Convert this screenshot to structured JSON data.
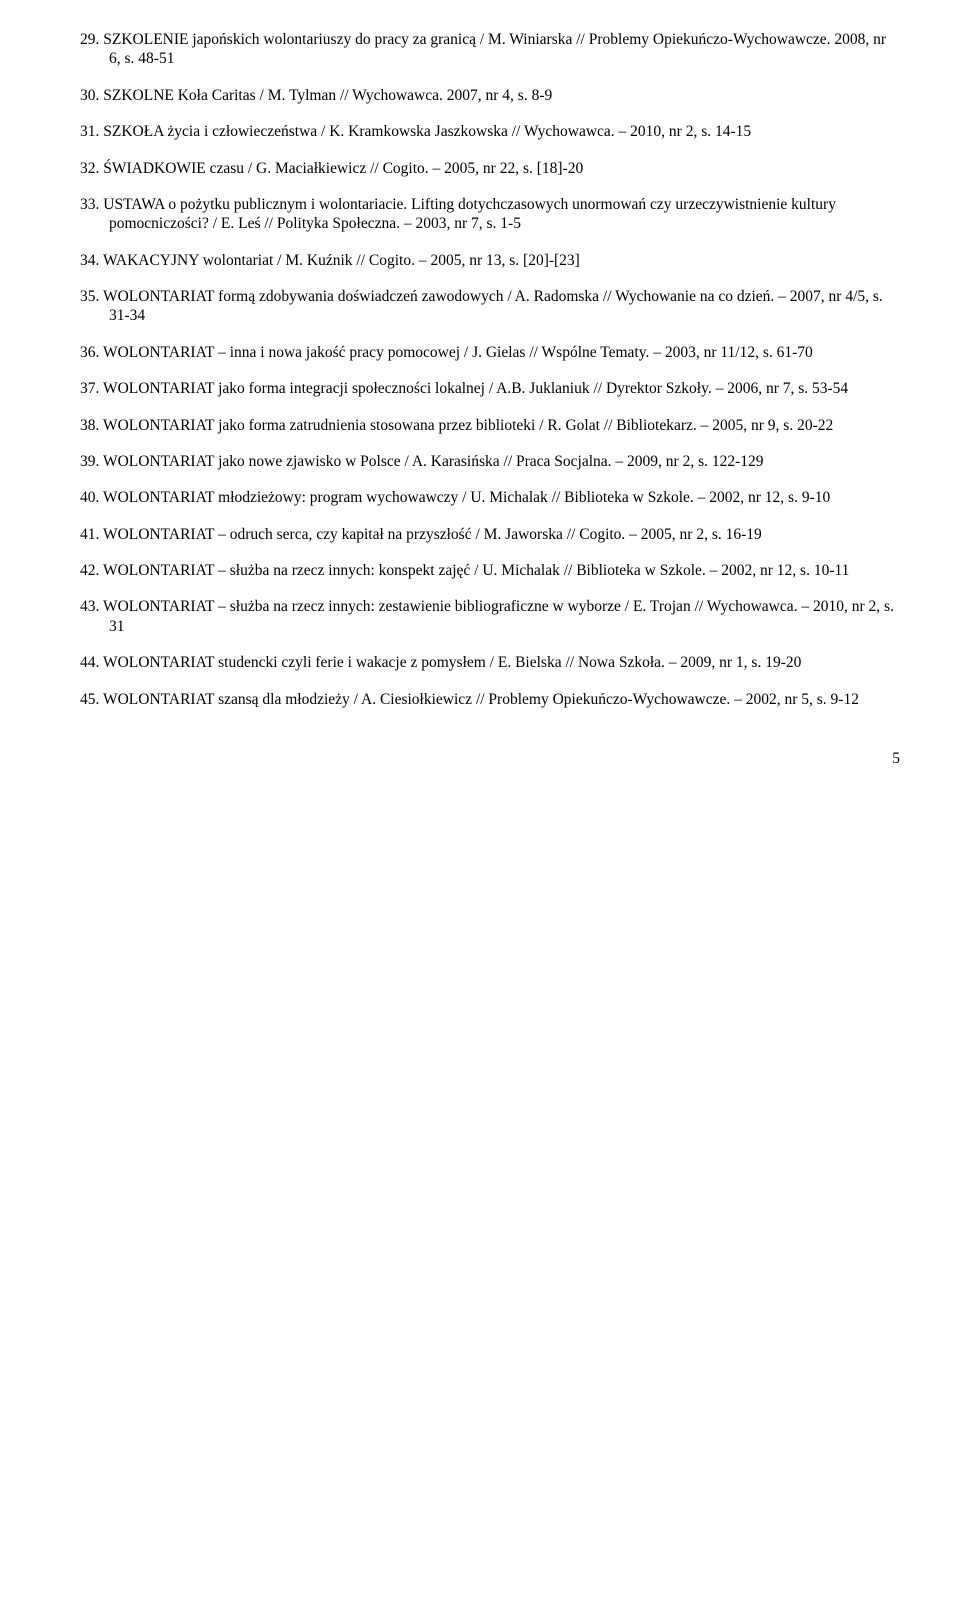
{
  "entries": [
    {
      "num": "29.",
      "text": "SZKOLENIE japońskich wolontariuszy do pracy za granicą / M. Winiarska // Problemy Opiekuńczo-Wychowawcze. 2008, nr 6, s. 48-51"
    },
    {
      "num": "30.",
      "text": "SZKOLNE Koła Caritas / M. Tylman // Wychowawca. 2007, nr 4, s. 8-9"
    },
    {
      "num": "31.",
      "text": "SZKOŁA życia i człowieczeństwa / K. Kramkowska Jaszkowska // Wychowawca. – 2010, nr 2, s. 14-15"
    },
    {
      "num": "32.",
      "text": "ŚWIADKOWIE czasu / G. Maciałkiewicz // Cogito. – 2005, nr 22, s. [18]-20"
    },
    {
      "num": "33.",
      "text": "USTAWA o pożytku publicznym i wolontariacie. Lifting dotychczasowych unormowań czy urzeczywistnienie kultury pomocniczości? / E. Leś // Polityka Społeczna. – 2003, nr 7, s. 1-5"
    },
    {
      "num": "34.",
      "text": "WAKACYJNY wolontariat / M. Kuźnik // Cogito. – 2005, nr 13, s. [20]-[23]"
    },
    {
      "num": "35.",
      "text": "WOLONTARIAT formą zdobywania doświadczeń zawodowych / A. Radomska // Wychowanie na co dzień. – 2007, nr 4/5, s. 31-34"
    },
    {
      "num": "36.",
      "text": "WOLONTARIAT – inna i nowa jakość pracy pomocowej / J. Gielas // Wspólne Tematy. – 2003, nr 11/12, s. 61-70"
    },
    {
      "num": "37.",
      "text": "WOLONTARIAT jako forma integracji społeczności lokalnej / A.B. Juklaniuk // Dyrektor Szkoły. – 2006, nr 7, s. 53-54"
    },
    {
      "num": "38.",
      "text": "WOLONTARIAT jako forma zatrudnienia stosowana przez biblioteki / R. Golat // Bibliotekarz. – 2005, nr 9, s. 20-22"
    },
    {
      "num": "39.",
      "text": "WOLONTARIAT jako nowe zjawisko w Polsce / A. Karasińska // Praca Socjalna. – 2009, nr 2, s. 122-129"
    },
    {
      "num": "40.",
      "text": "WOLONTARIAT młodzieżowy: program wychowawczy / U. Michalak // Biblioteka w Szkole. – 2002, nr 12, s. 9-10"
    },
    {
      "num": "41.",
      "text": "WOLONTARIAT – odruch serca, czy kapitał na przyszłość / M. Jaworska // Cogito. – 2005, nr 2, s. 16-19"
    },
    {
      "num": "42.",
      "text": "WOLONTARIAT – służba na rzecz innych: konspekt zajęć / U. Michalak // Biblioteka w Szkole. – 2002, nr 12, s. 10-11"
    },
    {
      "num": "43.",
      "text": "WOLONTARIAT – służba na rzecz innych: zestawienie bibliograficzne w wyborze / E. Trojan // Wychowawca. – 2010, nr 2, s. 31"
    },
    {
      "num": "44.",
      "text": "WOLONTARIAT studencki czyli ferie i wakacje z pomysłem / E. Bielska // Nowa Szkoła. – 2009, nr 1, s. 19-20"
    },
    {
      "num": "45.",
      "text": "WOLONTARIAT szansą dla młodzieży / A. Ciesiołkiewicz // Problemy Opiekuńczo-Wychowawcze. – 2002, nr 5, s. 9-12"
    }
  ],
  "page_number": "5"
}
